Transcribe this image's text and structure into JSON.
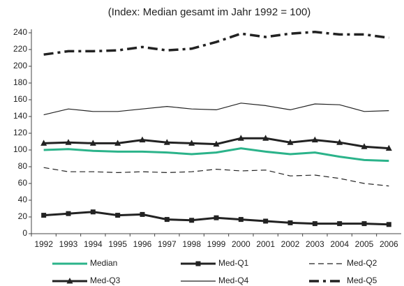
{
  "chart_data": {
    "type": "line",
    "title": "(Index: Median gesamt im Jahr 1992 = 100)",
    "categories": [
      "1992",
      "1993",
      "1994",
      "1995",
      "1996",
      "1997",
      "1998",
      "1999",
      "2000",
      "2001",
      "2002",
      "2003",
      "2004",
      "2005",
      "2006"
    ],
    "ylim": [
      0,
      240
    ],
    "yticks": [
      0,
      20,
      40,
      60,
      80,
      100,
      120,
      140,
      160,
      180,
      200,
      220,
      240
    ],
    "grid": false,
    "series": [
      {
        "name": "Median",
        "color": "#2bb38a",
        "style": "solid",
        "width": 3,
        "values": [
          100,
          101,
          99,
          98,
          98,
          97,
          95,
          97,
          102,
          98,
          95,
          97,
          92,
          88,
          87
        ]
      },
      {
        "name": "Med-Q1",
        "color": "#222222",
        "style": "solid",
        "width": 3,
        "marker": "square",
        "values": [
          22,
          24,
          26,
          22,
          23,
          17,
          16,
          19,
          17,
          15,
          13,
          12,
          12,
          12,
          11
        ]
      },
      {
        "name": "Med-Q2",
        "color": "#222222",
        "style": "dashed",
        "width": 1.2,
        "values": [
          79,
          74,
          74,
          73,
          74,
          73,
          74,
          77,
          75,
          76,
          69,
          70,
          66,
          60,
          57
        ]
      },
      {
        "name": "Med-Q3",
        "color": "#222222",
        "style": "solid",
        "width": 3,
        "marker": "triangle",
        "values": [
          108,
          109,
          108,
          108,
          112,
          109,
          108,
          107,
          114,
          114,
          109,
          112,
          109,
          104,
          102
        ]
      },
      {
        "name": "Med-Q4",
        "color": "#222222",
        "style": "solid",
        "width": 1.2,
        "values": [
          142,
          149,
          146,
          146,
          149,
          152,
          149,
          148,
          156,
          153,
          148,
          155,
          154,
          146,
          147
        ]
      },
      {
        "name": "Med-Q5",
        "color": "#222222",
        "style": "dashdot",
        "width": 3.5,
        "values": [
          214,
          218,
          218,
          219,
          223,
          219,
          221,
          229,
          239,
          235,
          239,
          241,
          238,
          238,
          234
        ]
      }
    ]
  }
}
